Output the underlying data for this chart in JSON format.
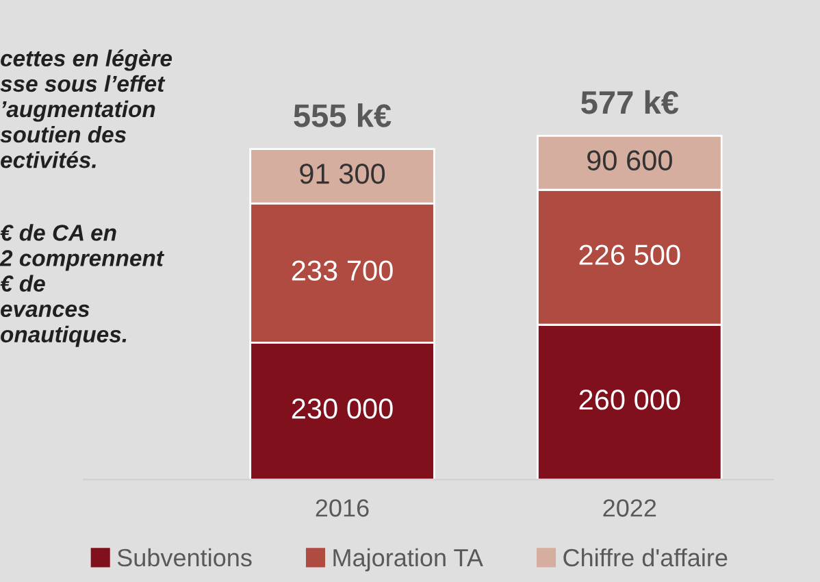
{
  "chart_data": {
    "type": "bar",
    "stacked": true,
    "categories": [
      "2016",
      "2022"
    ],
    "series": [
      {
        "name": "Subventions",
        "color": "#7f101c",
        "values": [
          230000,
          260000
        ],
        "value_labels": [
          "230 000",
          "260 000"
        ]
      },
      {
        "name": "Majoration TA",
        "color": "#b04b41",
        "values": [
          233700,
          226500
        ],
        "value_labels": [
          "233 700",
          "226 500"
        ]
      },
      {
        "name": "Chiffre d'affaire",
        "color": "#d6ae9f",
        "values": [
          91300,
          90600
        ],
        "value_labels": [
          "91 300",
          "90 600"
        ]
      }
    ],
    "totals": [
      "555 k€",
      "577 k€"
    ],
    "annotations": [
      "cettes en légère\nsse sous l’effet\n’augmentation\nsoutien des\nectivités.",
      "€ de CA en\n2 comprennent\n€ de\nevances\nonautiques."
    ],
    "legend": "bottom",
    "tick_labels": "x",
    "grid": false
  }
}
